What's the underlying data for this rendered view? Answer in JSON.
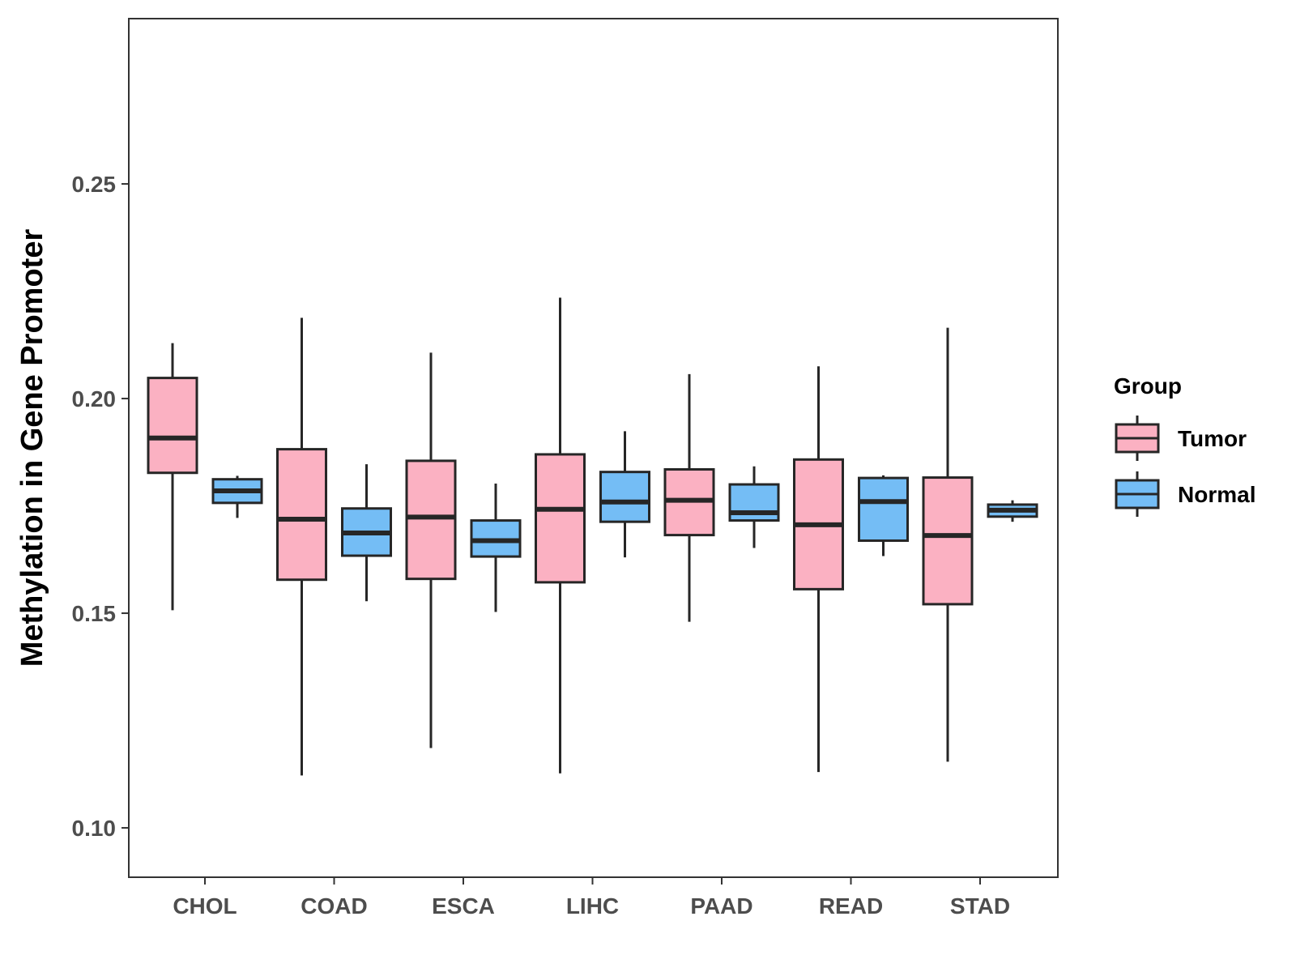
{
  "chart_data": {
    "type": "boxplot",
    "title": "",
    "xlabel": "",
    "ylabel": "Methylation in Gene Promoter",
    "ylim": [
      0.0885,
      0.2885
    ],
    "yticks": [
      {
        "value": 0.1,
        "label": "0.10"
      },
      {
        "value": 0.15,
        "label": "0.15"
      },
      {
        "value": 0.2,
        "label": "0.20"
      },
      {
        "value": 0.25,
        "label": "0.25"
      }
    ],
    "categories": [
      "CHOL",
      "COAD",
      "ESCA",
      "LIHC",
      "PAAD",
      "READ",
      "STAD"
    ],
    "legend": {
      "title": "Group",
      "position": "right",
      "entries": [
        {
          "name": "Tumor",
          "color": "#fbb1c2"
        },
        {
          "name": "Normal",
          "color": "#74bdf5"
        }
      ]
    },
    "series": [
      {
        "name": "Tumor",
        "color": "#fbb1c2",
        "boxes": [
          {
            "category": "CHOL",
            "min": 0.1507,
            "q1": 0.1827,
            "median": 0.1908,
            "q3": 0.2048,
            "max": 0.2129
          },
          {
            "category": "COAD",
            "min": 0.1122,
            "q1": 0.1578,
            "median": 0.1719,
            "q3": 0.1882,
            "max": 0.2188
          },
          {
            "category": "ESCA",
            "min": 0.1186,
            "q1": 0.158,
            "median": 0.1724,
            "q3": 0.1855,
            "max": 0.2107
          },
          {
            "category": "LIHC",
            "min": 0.1127,
            "q1": 0.1572,
            "median": 0.1742,
            "q3": 0.187,
            "max": 0.2235
          },
          {
            "category": "PAAD",
            "min": 0.148,
            "q1": 0.1682,
            "median": 0.1763,
            "q3": 0.1835,
            "max": 0.2057
          },
          {
            "category": "READ",
            "min": 0.113,
            "q1": 0.1556,
            "median": 0.1706,
            "q3": 0.1858,
            "max": 0.2075
          },
          {
            "category": "STAD",
            "min": 0.1154,
            "q1": 0.1521,
            "median": 0.1681,
            "q3": 0.1816,
            "max": 0.2165
          }
        ]
      },
      {
        "name": "Normal",
        "color": "#74bdf5",
        "boxes": [
          {
            "category": "CHOL",
            "min": 0.1722,
            "q1": 0.1757,
            "median": 0.1785,
            "q3": 0.1812,
            "max": 0.182
          },
          {
            "category": "COAD",
            "min": 0.1528,
            "q1": 0.1634,
            "median": 0.1687,
            "q3": 0.1744,
            "max": 0.1847
          },
          {
            "category": "ESCA",
            "min": 0.1503,
            "q1": 0.1632,
            "median": 0.1669,
            "q3": 0.1716,
            "max": 0.1802
          },
          {
            "category": "LIHC",
            "min": 0.163,
            "q1": 0.1713,
            "median": 0.1759,
            "q3": 0.1829,
            "max": 0.1924
          },
          {
            "category": "PAAD",
            "min": 0.1652,
            "q1": 0.1716,
            "median": 0.1734,
            "q3": 0.18,
            "max": 0.1842
          },
          {
            "category": "READ",
            "min": 0.1633,
            "q1": 0.1669,
            "median": 0.176,
            "q3": 0.1815,
            "max": 0.1821
          },
          {
            "category": "STAD",
            "min": 0.1713,
            "q1": 0.1725,
            "median": 0.174,
            "q3": 0.1753,
            "max": 0.1763
          }
        ]
      }
    ]
  }
}
